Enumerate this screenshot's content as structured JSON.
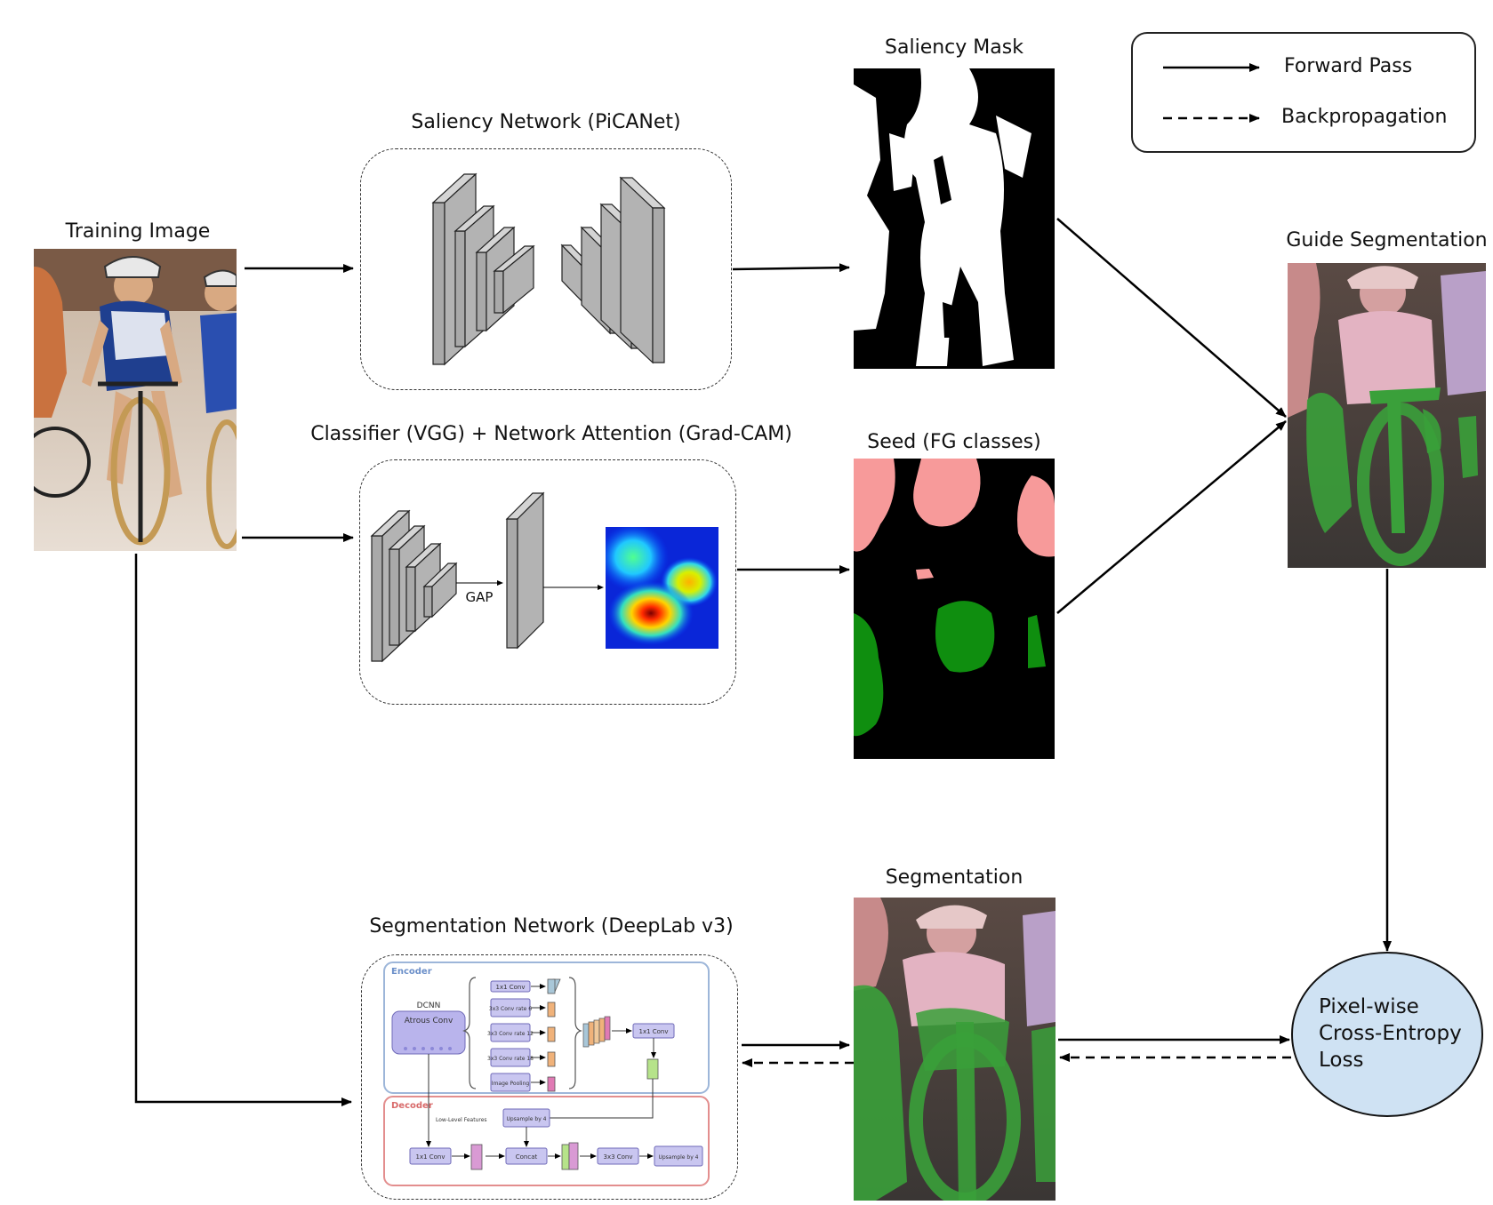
{
  "legend": {
    "forward_label": "Forward Pass",
    "backprop_label": "Backpropagation"
  },
  "training_image": {
    "title": "Training Image"
  },
  "saliency_network": {
    "title": "Saliency Network (PiCANet)"
  },
  "classifier_network": {
    "title": "Classifier (VGG) + Network Attention (Grad-CAM)",
    "gap_label": "GAP"
  },
  "saliency_mask": {
    "title": "Saliency Mask"
  },
  "seed": {
    "title": "Seed (FG classes)"
  },
  "guide_segmentation": {
    "title": "Guide Segmentation"
  },
  "segmentation": {
    "title": "Segmentation"
  },
  "segmentation_network": {
    "title": "Segmentation Network (DeepLab v3)",
    "encoder_label": "Encoder",
    "decoder_label": "Decoder",
    "dcnn_label": "DCNN",
    "atrous_label": "Atrous Conv",
    "branches": [
      "1x1 Conv",
      "3x3 Conv rate 6",
      "3x3 Conv rate 12",
      "3x3 Conv rate 18",
      "Image Pooling"
    ],
    "encoder_out": "1x1 Conv",
    "upsample1": "Upsample by 4",
    "low_level": "Low-Level Features",
    "dec_conv1": "1x1 Conv",
    "concat": "Concat",
    "dec_conv3": "3x3 Conv",
    "upsample2": "Upsample by 4"
  },
  "loss": {
    "lines": [
      "Pixel-wise",
      "Cross-Entropy",
      "Loss"
    ]
  },
  "colors": {
    "seed_person": "#f79a9a",
    "seed_bicycle": "#0f8e0f",
    "loss_fill": "#cfe2f3",
    "encoder_border": "#9db6d9",
    "decoder_border": "#e38e8e"
  }
}
